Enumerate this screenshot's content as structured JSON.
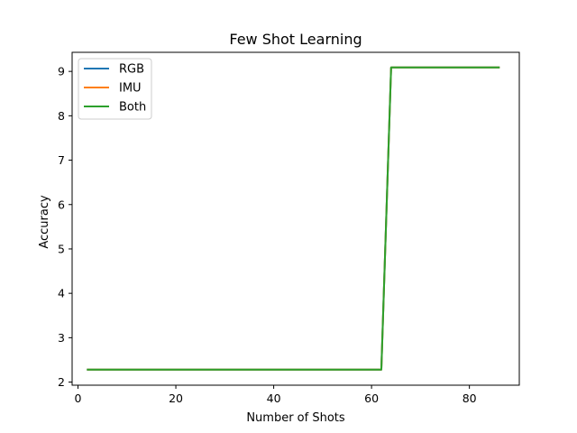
{
  "chart_data": {
    "type": "line",
    "title": "Few Shot Learning",
    "xlabel": "Number of Shots",
    "ylabel": "Accuracy",
    "xlim": [
      -1.2,
      90.2
    ],
    "ylim": [
      1.93,
      9.43
    ],
    "xticks": [
      0,
      20,
      40,
      60,
      80
    ],
    "yticks": [
      2,
      3,
      4,
      5,
      6,
      7,
      8,
      9
    ],
    "grid": false,
    "legend": "top-left",
    "x": [
      2,
      62,
      64,
      86
    ],
    "series": [
      {
        "name": "RGB",
        "color": "#1f77b4",
        "values": [
          2.28,
          2.28,
          9.09,
          9.09
        ]
      },
      {
        "name": "IMU",
        "color": "#ff7f0e",
        "values": [
          2.28,
          2.28,
          9.09,
          9.09
        ]
      },
      {
        "name": "Both",
        "color": "#2ca02c",
        "values": [
          2.28,
          2.28,
          9.09,
          9.09
        ]
      }
    ]
  }
}
